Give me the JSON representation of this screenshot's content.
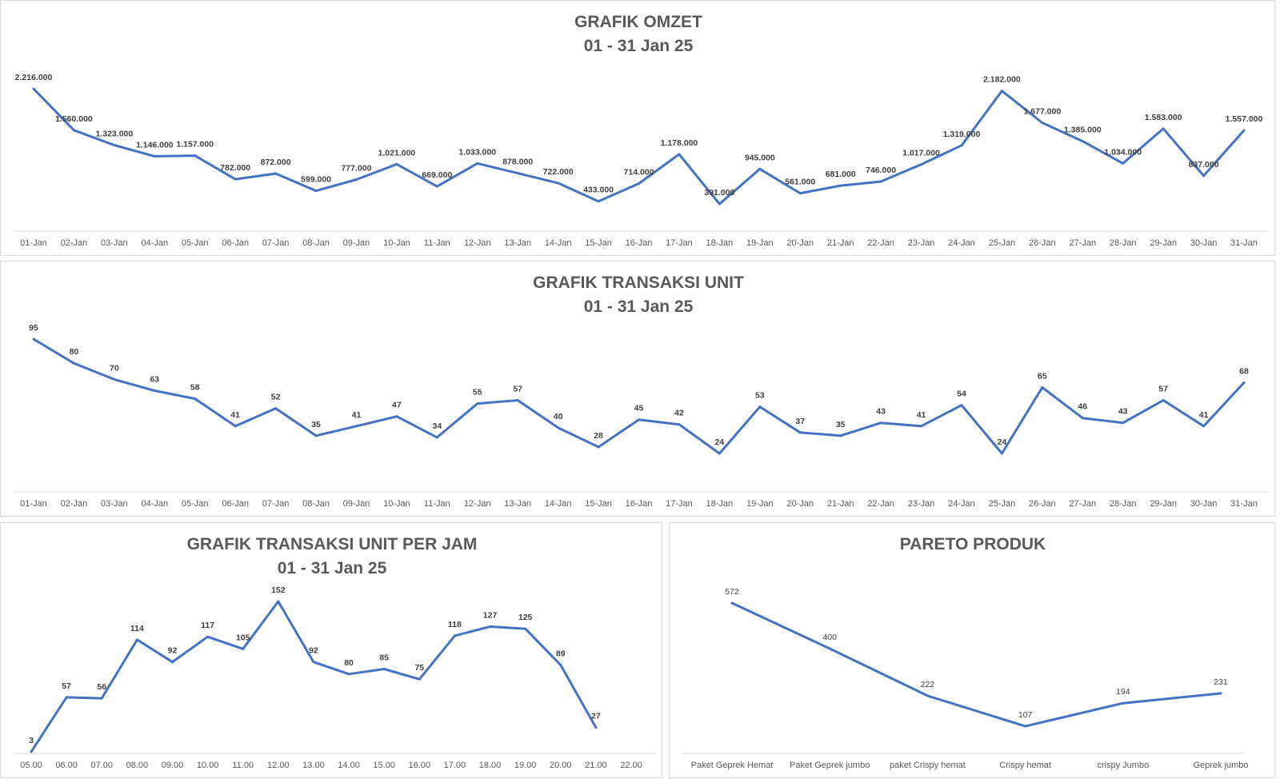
{
  "colors": {
    "line": "#4472C4",
    "axis": "#d9d9d9",
    "title": "#595959",
    "label": "#404040"
  },
  "chart_data": [
    {
      "id": "omzet",
      "type": "line",
      "title": "GRAFIK OMZET",
      "subtitle": "01 - 31 Jan 25",
      "categories": [
        "01-Jan",
        "02-Jan",
        "03-Jan",
        "04-Jan",
        "05-Jan",
        "06-Jan",
        "07-Jan",
        "08-Jan",
        "09-Jan",
        "10-Jan",
        "11-Jan",
        "12-Jan",
        "13-Jan",
        "14-Jan",
        "15-Jan",
        "16-Jan",
        "17-Jan",
        "18-Jan",
        "19-Jan",
        "20-Jan",
        "21-Jan",
        "22-Jan",
        "23-Jan",
        "24-Jan",
        "25-Jan",
        "26-Jan",
        "27-Jan",
        "28-Jan",
        "29-Jan",
        "30-Jan",
        "31-Jan"
      ],
      "values": [
        2216000,
        1560000,
        1323000,
        1146000,
        1157000,
        782000,
        872000,
        599000,
        777000,
        1021000,
        669000,
        1033000,
        878000,
        722000,
        433000,
        714000,
        1178000,
        391000,
        945000,
        561000,
        681000,
        746000,
        1017000,
        1319000,
        2182000,
        1677000,
        1385000,
        1034000,
        1583000,
        837000,
        1557000
      ],
      "labels": [
        "2.216.000",
        "1.560.000",
        "1.323.000",
        "1.146.000",
        "1.157.000",
        "782.000",
        "872.000",
        "599.000",
        "777.000",
        "1.021.000",
        "669.000",
        "1.033.000",
        "878.000",
        "722.000",
        "433.000",
        "714.000",
        "1.178.000",
        "391.000",
        "945.000",
        "561.000",
        "681.000",
        "746.000",
        "1.017.000",
        "1.319.000",
        "2.182.000",
        "1.677.000",
        "1.385.000",
        "1.034.000",
        "1.583.000",
        "837.000",
        "1.557.000"
      ],
      "grid": false,
      "legend": "none"
    },
    {
      "id": "unit",
      "type": "line",
      "title": "GRAFIK TRANSAKSI UNIT",
      "subtitle": "01 - 31 Jan 25",
      "categories": [
        "01-Jan",
        "02-Jan",
        "03-Jan",
        "04-Jan",
        "05-Jan",
        "06-Jan",
        "07-Jan",
        "08-Jan",
        "09-Jan",
        "10-Jan",
        "11-Jan",
        "12-Jan",
        "13-Jan",
        "14-Jan",
        "15-Jan",
        "16-Jan",
        "17-Jan",
        "18-Jan",
        "19-Jan",
        "20-Jan",
        "21-Jan",
        "22-Jan",
        "23-Jan",
        "24-Jan",
        "25-Jan",
        "26-Jan",
        "27-Jan",
        "28-Jan",
        "29-Jan",
        "30-Jan",
        "31-Jan"
      ],
      "values": [
        95,
        80,
        70,
        63,
        58,
        41,
        52,
        35,
        41,
        47,
        34,
        55,
        57,
        40,
        28,
        45,
        42,
        24,
        53,
        37,
        35,
        43,
        41,
        54,
        24,
        65,
        46,
        43,
        57,
        41,
        68
      ],
      "labels": [
        "95",
        "80",
        "70",
        "63",
        "58",
        "41",
        "52",
        "35",
        "41",
        "47",
        "34",
        "55",
        "57",
        "40",
        "28",
        "45",
        "42",
        "24",
        "53",
        "37",
        "35",
        "43",
        "41",
        "54",
        "24",
        "65",
        "46",
        "43",
        "57",
        "41",
        "68"
      ],
      "grid": false,
      "legend": "none"
    },
    {
      "id": "jam",
      "type": "line",
      "title": "GRAFIK TRANSAKSI UNIT PER JAM",
      "subtitle": "01 - 31 Jan 25",
      "categories": [
        "05.00",
        "06.00",
        "07.00",
        "08.00",
        "09.00",
        "10.00",
        "11.00",
        "12.00",
        "13.00",
        "14.00",
        "15.00",
        "16.00",
        "17.00",
        "18.00",
        "19.00",
        "20.00",
        "21.00",
        "22.00"
      ],
      "values": [
        3,
        57,
        56,
        114,
        92,
        117,
        105,
        152,
        92,
        80,
        85,
        75,
        118,
        127,
        125,
        89,
        27,
        null
      ],
      "labels": [
        "3",
        "57",
        "56",
        "114",
        "92",
        "117",
        "105",
        "152",
        "92",
        "80",
        "85",
        "75",
        "118",
        "127",
        "125",
        "89",
        "27",
        ""
      ],
      "grid": false,
      "legend": "none"
    },
    {
      "id": "pareto",
      "type": "line",
      "title": "PARETO PRODUK",
      "subtitle": "",
      "categories": [
        "Paket Geprek Hemat",
        "Paket Geprek jumbo",
        "paket Crispy hemat",
        "Crispy hemat",
        "crispy Jumbo",
        "Geprek jumbo"
      ],
      "values": [
        572,
        400,
        222,
        107,
        194,
        231
      ],
      "labels": [
        "572",
        "400",
        "222",
        "107",
        "194",
        "231"
      ],
      "grid": false,
      "legend": "none"
    }
  ]
}
